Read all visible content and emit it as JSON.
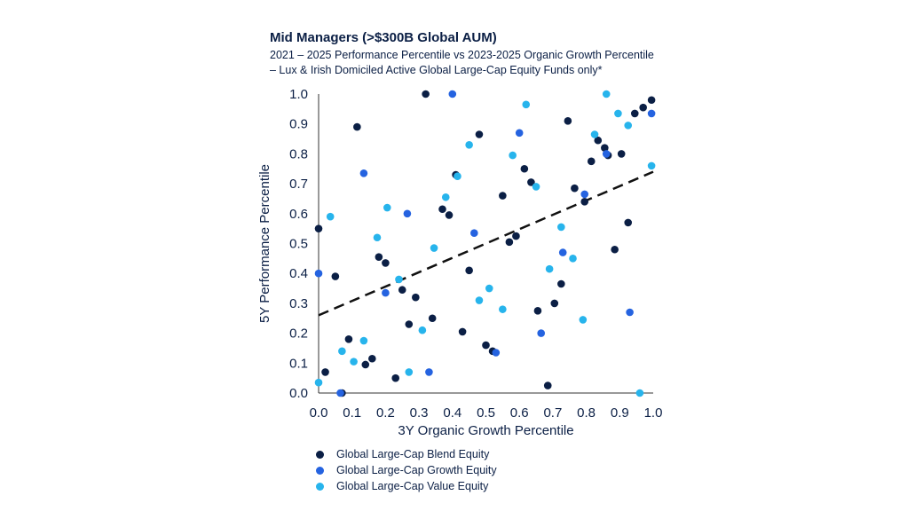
{
  "chart_data": {
    "type": "scatter",
    "title": "Mid Managers (>$300B Global AUM)",
    "subtitle_lines": [
      "2021 – 2025 Performance Percentile vs 2023-2025 Organic Growth Percentile",
      "– Lux & Irish Domiciled Active Global Large-Cap Equity Funds only*"
    ],
    "xlabel": "3Y Organic Growth Percentile",
    "ylabel": "5Y Performance Percentile",
    "xlim": [
      0,
      1
    ],
    "ylim": [
      0,
      1
    ],
    "x_ticks": [
      "0.0",
      "0.1",
      "0.2",
      "0.3",
      "0.4",
      "0.5",
      "0.6",
      "0.7",
      "0.8",
      "0.9",
      "1.0"
    ],
    "y_ticks": [
      "0.0",
      "0.1",
      "0.2",
      "0.3",
      "0.4",
      "0.5",
      "0.6",
      "0.7",
      "0.8",
      "0.9",
      "1.0"
    ],
    "grid": false,
    "trendline": {
      "style": "dashed",
      "color": "#111111",
      "x": [
        0,
        1
      ],
      "y": [
        0.26,
        0.74
      ]
    },
    "legend_position": "bottom-left",
    "series": [
      {
        "name": "Global Large-Cap Blend Equity",
        "color": "#0b1f45",
        "points": [
          [
            0.0,
            0.55
          ],
          [
            0.02,
            0.07
          ],
          [
            0.05,
            0.39
          ],
          [
            0.07,
            0.0
          ],
          [
            0.09,
            0.18
          ],
          [
            0.115,
            0.89
          ],
          [
            0.14,
            0.095
          ],
          [
            0.16,
            0.115
          ],
          [
            0.18,
            0.455
          ],
          [
            0.2,
            0.435
          ],
          [
            0.23,
            0.05
          ],
          [
            0.25,
            0.345
          ],
          [
            0.27,
            0.23
          ],
          [
            0.29,
            0.32
          ],
          [
            0.32,
            1.0
          ],
          [
            0.34,
            0.25
          ],
          [
            0.37,
            0.615
          ],
          [
            0.39,
            0.595
          ],
          [
            0.41,
            0.73
          ],
          [
            0.43,
            0.205
          ],
          [
            0.45,
            0.41
          ],
          [
            0.48,
            0.865
          ],
          [
            0.5,
            0.16
          ],
          [
            0.52,
            0.14
          ],
          [
            0.55,
            0.66
          ],
          [
            0.57,
            0.505
          ],
          [
            0.59,
            0.525
          ],
          [
            0.615,
            0.75
          ],
          [
            0.635,
            0.705
          ],
          [
            0.655,
            0.275
          ],
          [
            0.685,
            0.025
          ],
          [
            0.705,
            0.3
          ],
          [
            0.725,
            0.365
          ],
          [
            0.745,
            0.91
          ],
          [
            0.765,
            0.685
          ],
          [
            0.795,
            0.64
          ],
          [
            0.815,
            0.775
          ],
          [
            0.835,
            0.845
          ],
          [
            0.855,
            0.82
          ],
          [
            0.865,
            0.795
          ],
          [
            0.885,
            0.48
          ],
          [
            0.905,
            0.8
          ],
          [
            0.925,
            0.57
          ],
          [
            0.945,
            0.935
          ],
          [
            0.97,
            0.955
          ],
          [
            0.995,
            0.98
          ]
        ]
      },
      {
        "name": "Global Large-Cap Growth Equity",
        "color": "#2563e0",
        "points": [
          [
            0.0,
            0.4
          ],
          [
            0.065,
            0.0
          ],
          [
            0.135,
            0.735
          ],
          [
            0.2,
            0.335
          ],
          [
            0.265,
            0.6
          ],
          [
            0.33,
            0.07
          ],
          [
            0.4,
            1.0
          ],
          [
            0.465,
            0.535
          ],
          [
            0.53,
            0.135
          ],
          [
            0.6,
            0.87
          ],
          [
            0.665,
            0.2
          ],
          [
            0.73,
            0.47
          ],
          [
            0.795,
            0.665
          ],
          [
            0.86,
            0.8
          ],
          [
            0.93,
            0.27
          ],
          [
            0.995,
            0.935
          ]
        ]
      },
      {
        "name": "Global Large-Cap Value Equity",
        "color": "#27b4ec",
        "points": [
          [
            0.0,
            0.035
          ],
          [
            0.035,
            0.59
          ],
          [
            0.07,
            0.14
          ],
          [
            0.105,
            0.105
          ],
          [
            0.135,
            0.175
          ],
          [
            0.175,
            0.52
          ],
          [
            0.205,
            0.62
          ],
          [
            0.24,
            0.38
          ],
          [
            0.27,
            0.07
          ],
          [
            0.31,
            0.21
          ],
          [
            0.345,
            0.485
          ],
          [
            0.38,
            0.655
          ],
          [
            0.415,
            0.725
          ],
          [
            0.45,
            0.83
          ],
          [
            0.48,
            0.31
          ],
          [
            0.51,
            0.35
          ],
          [
            0.55,
            0.28
          ],
          [
            0.58,
            0.795
          ],
          [
            0.62,
            0.965
          ],
          [
            0.65,
            0.69
          ],
          [
            0.69,
            0.415
          ],
          [
            0.725,
            0.555
          ],
          [
            0.76,
            0.45
          ],
          [
            0.79,
            0.245
          ],
          [
            0.825,
            0.865
          ],
          [
            0.86,
            1.0
          ],
          [
            0.895,
            0.935
          ],
          [
            0.925,
            0.895
          ],
          [
            0.96,
            0.0
          ],
          [
            0.995,
            0.76
          ]
        ]
      }
    ]
  }
}
